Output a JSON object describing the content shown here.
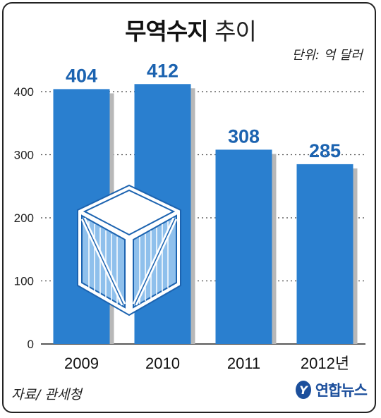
{
  "title": {
    "strong": "무역수지",
    "light": "추이"
  },
  "unit": "단위: 억 달러",
  "source": "자료/ 관세청",
  "logo": {
    "text": "연합뉴스",
    "icon": "yonhap-logo-icon"
  },
  "illustration": "cargo-crate-icon",
  "colors": {
    "bar": "#2a7fcf",
    "bar_shadow": "#b8b8b8",
    "value_text": "#1c63b0",
    "logo": "#1c4f9c"
  },
  "chart_data": {
    "type": "bar",
    "categories": [
      "2009",
      "2010",
      "2011",
      "2012년"
    ],
    "values": [
      404,
      412,
      308,
      285
    ],
    "value_labels": [
      "404",
      "412",
      "308",
      "285"
    ],
    "ylim": [
      0,
      400
    ],
    "yticks": [
      0,
      100,
      200,
      300,
      400
    ],
    "ytick_labels": [
      "0",
      "100",
      "200",
      "300",
      "400"
    ],
    "grid": "dotted-horizontal",
    "xlabel": "",
    "ylabel": ""
  }
}
